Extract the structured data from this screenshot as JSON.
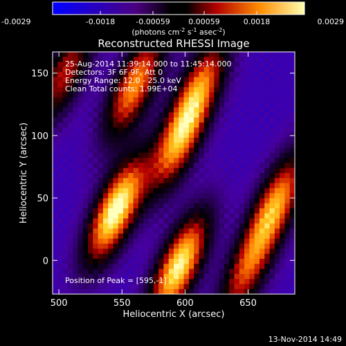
{
  "chart_data": {
    "type": "heatmap",
    "title": "Reconstructed RHESSI Image",
    "xlabel": "Heliocentric X (arcsec)",
    "ylabel": "Heliocentric Y (arcsec)",
    "xlim": [
      495,
      687
    ],
    "ylim": [
      -27,
      167
    ],
    "x_ticks": [
      "500",
      "550",
      "600",
      "650"
    ],
    "x_tick_values": [
      500,
      550,
      600,
      650
    ],
    "y_ticks": [
      "0",
      "50",
      "100",
      "150"
    ],
    "y_tick_values": [
      0,
      50,
      100,
      150
    ],
    "colorbar": {
      "ticks": [
        "-0.0029",
        "-0.0018",
        "-0.00059",
        "0.00059",
        "0.0018",
        "0.0029"
      ],
      "tick_values": [
        -0.0029,
        -0.0018,
        -0.00059,
        0.00059,
        0.0018,
        0.0029
      ],
      "range": [
        -0.0029,
        0.0029
      ],
      "unit_prefix": "(photons cm",
      "unit_exp1": "-2",
      "unit_mid": " s",
      "unit_exp2": "-1",
      "unit_mid2": " asec",
      "unit_exp3": "-2",
      "unit_suffix": ")"
    },
    "annotations": [
      "25-Aug-2014 11:39:14.000 to 11:45:14.000",
      "Detectors: 3F 6F 9F, Att 0",
      "Energy Range: 12.0 - 25.0 keV",
      "Clean     Total counts: 1.99E+04"
    ],
    "peak_label": "Position of Peak = [595,-1]",
    "peak": [
      595,
      -1
    ],
    "grid": false,
    "ridges": [
      {
        "x": 545,
        "y": 40,
        "amp": 1.0
      },
      {
        "x": 595,
        "y": -5,
        "amp": 0.95
      },
      {
        "x": 595,
        "y": 95,
        "amp": 0.7
      },
      {
        "x": 612,
        "y": 140,
        "amp": 0.6
      },
      {
        "x": 560,
        "y": 140,
        "amp": 0.75
      },
      {
        "x": 672,
        "y": 45,
        "amp": 0.75
      },
      {
        "x": 648,
        "y": -10,
        "amp": 0.55
      },
      {
        "x": 505,
        "y": 150,
        "amp": 0.55
      }
    ]
  },
  "footer_date": "13-Nov-2014 14:49",
  "colors": {
    "background": "#000000",
    "foreground": "#ffffff"
  }
}
